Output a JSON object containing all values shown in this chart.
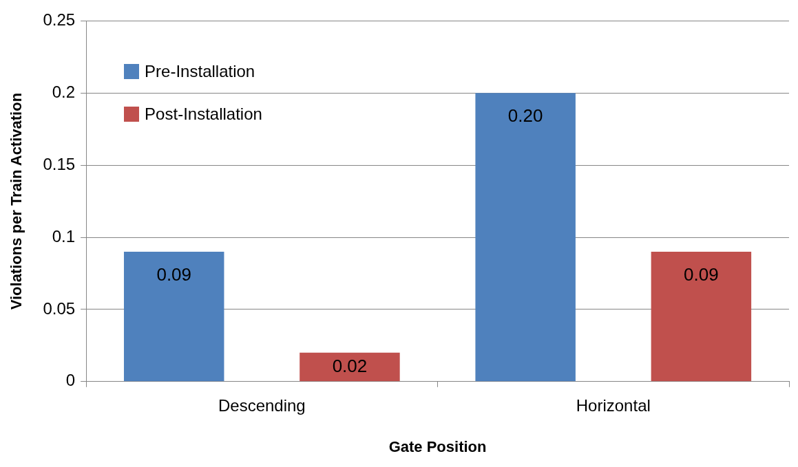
{
  "chart_data": {
    "type": "bar",
    "xlabel": "Gate Position",
    "ylabel": "Violations per Train Activation",
    "categories": [
      "Descending",
      "Horizontal"
    ],
    "series": [
      {
        "name": "Pre-Installation",
        "color": "#4f81bd",
        "values": [
          0.09,
          0.2
        ],
        "value_labels": [
          "0.09",
          "0.20"
        ]
      },
      {
        "name": "Post-Installation",
        "color": "#c0504d",
        "values": [
          0.02,
          0.09
        ],
        "value_labels": [
          "0.02",
          "0.09"
        ]
      }
    ],
    "ylim": [
      0,
      0.25
    ],
    "yticks": [
      0,
      0.05,
      0.1,
      0.15,
      0.2,
      0.25
    ],
    "grid": "y",
    "legend": "top left"
  }
}
